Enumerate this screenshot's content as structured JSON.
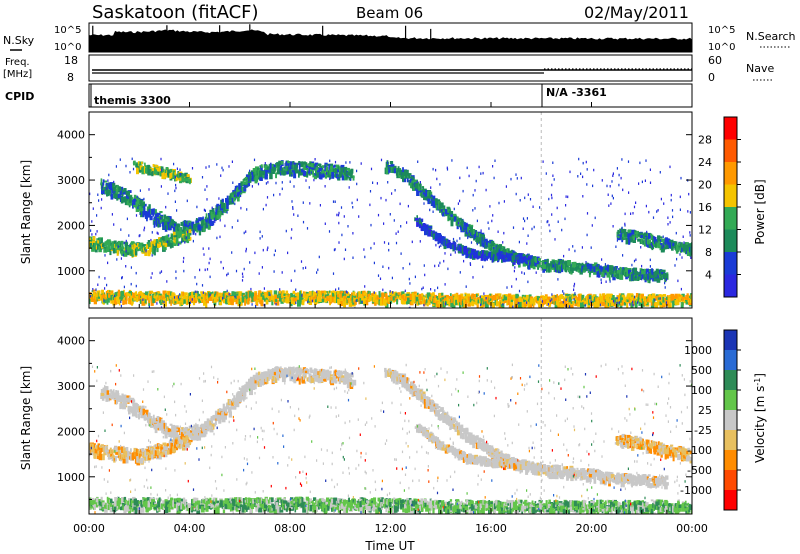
{
  "header": {
    "station": "Saskatoon (fitACF)",
    "beam": "Beam 06",
    "date": "02/May/2011"
  },
  "nsky_panel": {
    "left_label": "N.Sky",
    "right_label": "N.Search",
    "left_ticks": [
      "10^5",
      "10^0"
    ],
    "right_ticks": [
      "10^5",
      "10^0"
    ]
  },
  "freq_panel": {
    "left_label_1": "Freq.",
    "left_label_2": "[MHz]",
    "right_label": "Nave",
    "left_ticks": [
      "18",
      "8"
    ],
    "right_ticks": [
      "60",
      "0"
    ]
  },
  "cpid_panel": {
    "label": "CPID",
    "entries": [
      {
        "time_h": 0.0,
        "text": "themis 3300"
      },
      {
        "time_h": 18.0,
        "text": "N/A -3361"
      }
    ]
  },
  "x_axis": {
    "label": "Time UT",
    "ticks": [
      "00:00",
      "04:00",
      "08:00",
      "12:00",
      "16:00",
      "20:00",
      "00:00"
    ],
    "tick_hours": [
      0,
      4,
      8,
      12,
      16,
      20,
      24
    ]
  },
  "chart_data": [
    {
      "type": "heatmap",
      "title": "Power",
      "ylabel": "Slant Range [km]",
      "ylim": [
        180,
        4500
      ],
      "xlim_hours": [
        0,
        24
      ],
      "y_ticks": [
        1000,
        2000,
        3000,
        4000
      ],
      "colorbar": {
        "label": "Power [dB]",
        "ticks": [
          "28",
          "24",
          "20",
          "16",
          "12",
          "8",
          "4"
        ],
        "colors": [
          "#ff0000",
          "#ff5a00",
          "#ff9900",
          "#f5c400",
          "#33aa55",
          "#1c8a5a",
          "#1a3bd6",
          "#2b28e0"
        ]
      },
      "bands": [
        {
          "name": "upper arc",
          "points": [
            [
              0.5,
              2850
            ],
            [
              1.5,
              2600
            ],
            [
              2.5,
              2200
            ],
            [
              3.5,
              1900
            ],
            [
              4.5,
              2000
            ],
            [
              5.5,
              2500
            ],
            [
              6.5,
              3100
            ],
            [
              7.5,
              3250
            ],
            [
              9.5,
              3200
            ],
            [
              10.5,
              3100
            ]
          ],
          "width": 260,
          "level": 2
        },
        {
          "name": "top band",
          "points": [
            [
              1.8,
              3300
            ],
            [
              3.0,
              3150
            ],
            [
              4.0,
              3000
            ]
          ],
          "width": 150,
          "level": 3
        },
        {
          "name": "descending arc",
          "points": [
            [
              11.8,
              3300
            ],
            [
              12.5,
              3100
            ],
            [
              13.2,
              2750
            ],
            [
              14.0,
              2350
            ],
            [
              15.0,
              1900
            ],
            [
              16.0,
              1500
            ],
            [
              17.0,
              1250
            ],
            [
              18.0,
              1130
            ],
            [
              19.0,
              1080
            ],
            [
              20.0,
              1030
            ],
            [
              21.0,
              930
            ],
            [
              22.0,
              900
            ],
            [
              23.0,
              880
            ]
          ],
          "width": 200,
          "level": 2
        },
        {
          "name": "lower arc",
          "points": [
            [
              13.0,
              2100
            ],
            [
              14.0,
              1650
            ],
            [
              15.0,
              1400
            ],
            [
              16.0,
              1300
            ],
            [
              17.5,
              1250
            ]
          ],
          "width": 120,
          "level": 1
        },
        {
          "name": "right band",
          "points": [
            [
              21.0,
              1800
            ],
            [
              22.0,
              1700
            ],
            [
              23.0,
              1550
            ],
            [
              24.0,
              1450
            ]
          ],
          "width": 220,
          "level": 2
        },
        {
          "name": "left band",
          "points": [
            [
              0.0,
              1600
            ],
            [
              1.0,
              1500
            ],
            [
              2.0,
              1450
            ],
            [
              3.0,
              1600
            ],
            [
              4.0,
              1800
            ]
          ],
          "width": 240,
          "level": 3
        },
        {
          "name": "ground scatter",
          "points": [
            [
              0.0,
              420
            ],
            [
              4.0,
              380
            ],
            [
              8.0,
              400
            ],
            [
              12.0,
              380
            ],
            [
              14.0,
              350
            ],
            [
              17.0,
              320
            ],
            [
              24.0,
              340
            ]
          ],
          "width": 220,
          "level": 4
        }
      ]
    },
    {
      "type": "heatmap",
      "title": "Velocity",
      "ylabel": "Slant Range [km]",
      "ylim": [
        180,
        4500
      ],
      "xlim_hours": [
        0,
        24
      ],
      "y_ticks": [
        1000,
        2000,
        3000,
        4000
      ],
      "colorbar": {
        "label": "Velocity [m s-1]",
        "label_main": "Velocity [m s",
        "label_exp": "-1",
        "label_end": "]",
        "ticks": [
          "1000",
          "500",
          "100",
          "25",
          "-25",
          "-100",
          "-500",
          "-1000"
        ],
        "colors": [
          "#1b35b5",
          "#2a6bd4",
          "#2e8b57",
          "#63c64a",
          "#c8c8c8",
          "#e8c060",
          "#ff8c00",
          "#ff4a00",
          "#ff0000"
        ]
      },
      "bands": [
        {
          "name": "upper arc",
          "points": [
            [
              0.5,
              2850
            ],
            [
              1.5,
              2600
            ],
            [
              2.5,
              2200
            ],
            [
              3.5,
              1900
            ],
            [
              4.5,
              2000
            ],
            [
              5.5,
              2500
            ],
            [
              6.5,
              3100
            ],
            [
              7.5,
              3250
            ],
            [
              9.5,
              3200
            ],
            [
              10.5,
              3100
            ]
          ],
          "width": 260,
          "level": 4
        },
        {
          "name": "descending arc",
          "points": [
            [
              11.8,
              3300
            ],
            [
              12.5,
              3100
            ],
            [
              13.2,
              2750
            ],
            [
              14.0,
              2350
            ],
            [
              15.0,
              1900
            ],
            [
              16.0,
              1500
            ],
            [
              17.0,
              1250
            ],
            [
              18.0,
              1130
            ],
            [
              19.0,
              1080
            ],
            [
              20.0,
              1030
            ],
            [
              21.0,
              930
            ],
            [
              22.0,
              900
            ],
            [
              23.0,
              880
            ]
          ],
          "width": 200,
          "level": 4
        },
        {
          "name": "lower arc",
          "points": [
            [
              13.0,
              2100
            ],
            [
              14.0,
              1650
            ],
            [
              15.0,
              1400
            ],
            [
              16.0,
              1300
            ],
            [
              17.5,
              1250
            ]
          ],
          "width": 120,
          "level": 4
        },
        {
          "name": "right band",
          "points": [
            [
              21.0,
              1800
            ],
            [
              22.0,
              1700
            ],
            [
              23.0,
              1550
            ],
            [
              24.0,
              1450
            ]
          ],
          "width": 220,
          "level": 5
        },
        {
          "name": "left band",
          "points": [
            [
              0.0,
              1600
            ],
            [
              1.0,
              1500
            ],
            [
              2.0,
              1450
            ],
            [
              3.0,
              1600
            ],
            [
              4.0,
              1800
            ]
          ],
          "width": 240,
          "level": 5
        },
        {
          "name": "ground scatter",
          "points": [
            [
              0.0,
              380
            ],
            [
              4.0,
              360
            ],
            [
              8.0,
              380
            ],
            [
              12.0,
              360
            ],
            [
              14.0,
              330
            ],
            [
              17.0,
              310
            ],
            [
              24.0,
              320
            ]
          ],
          "width": 240,
          "level": 3
        }
      ]
    }
  ]
}
